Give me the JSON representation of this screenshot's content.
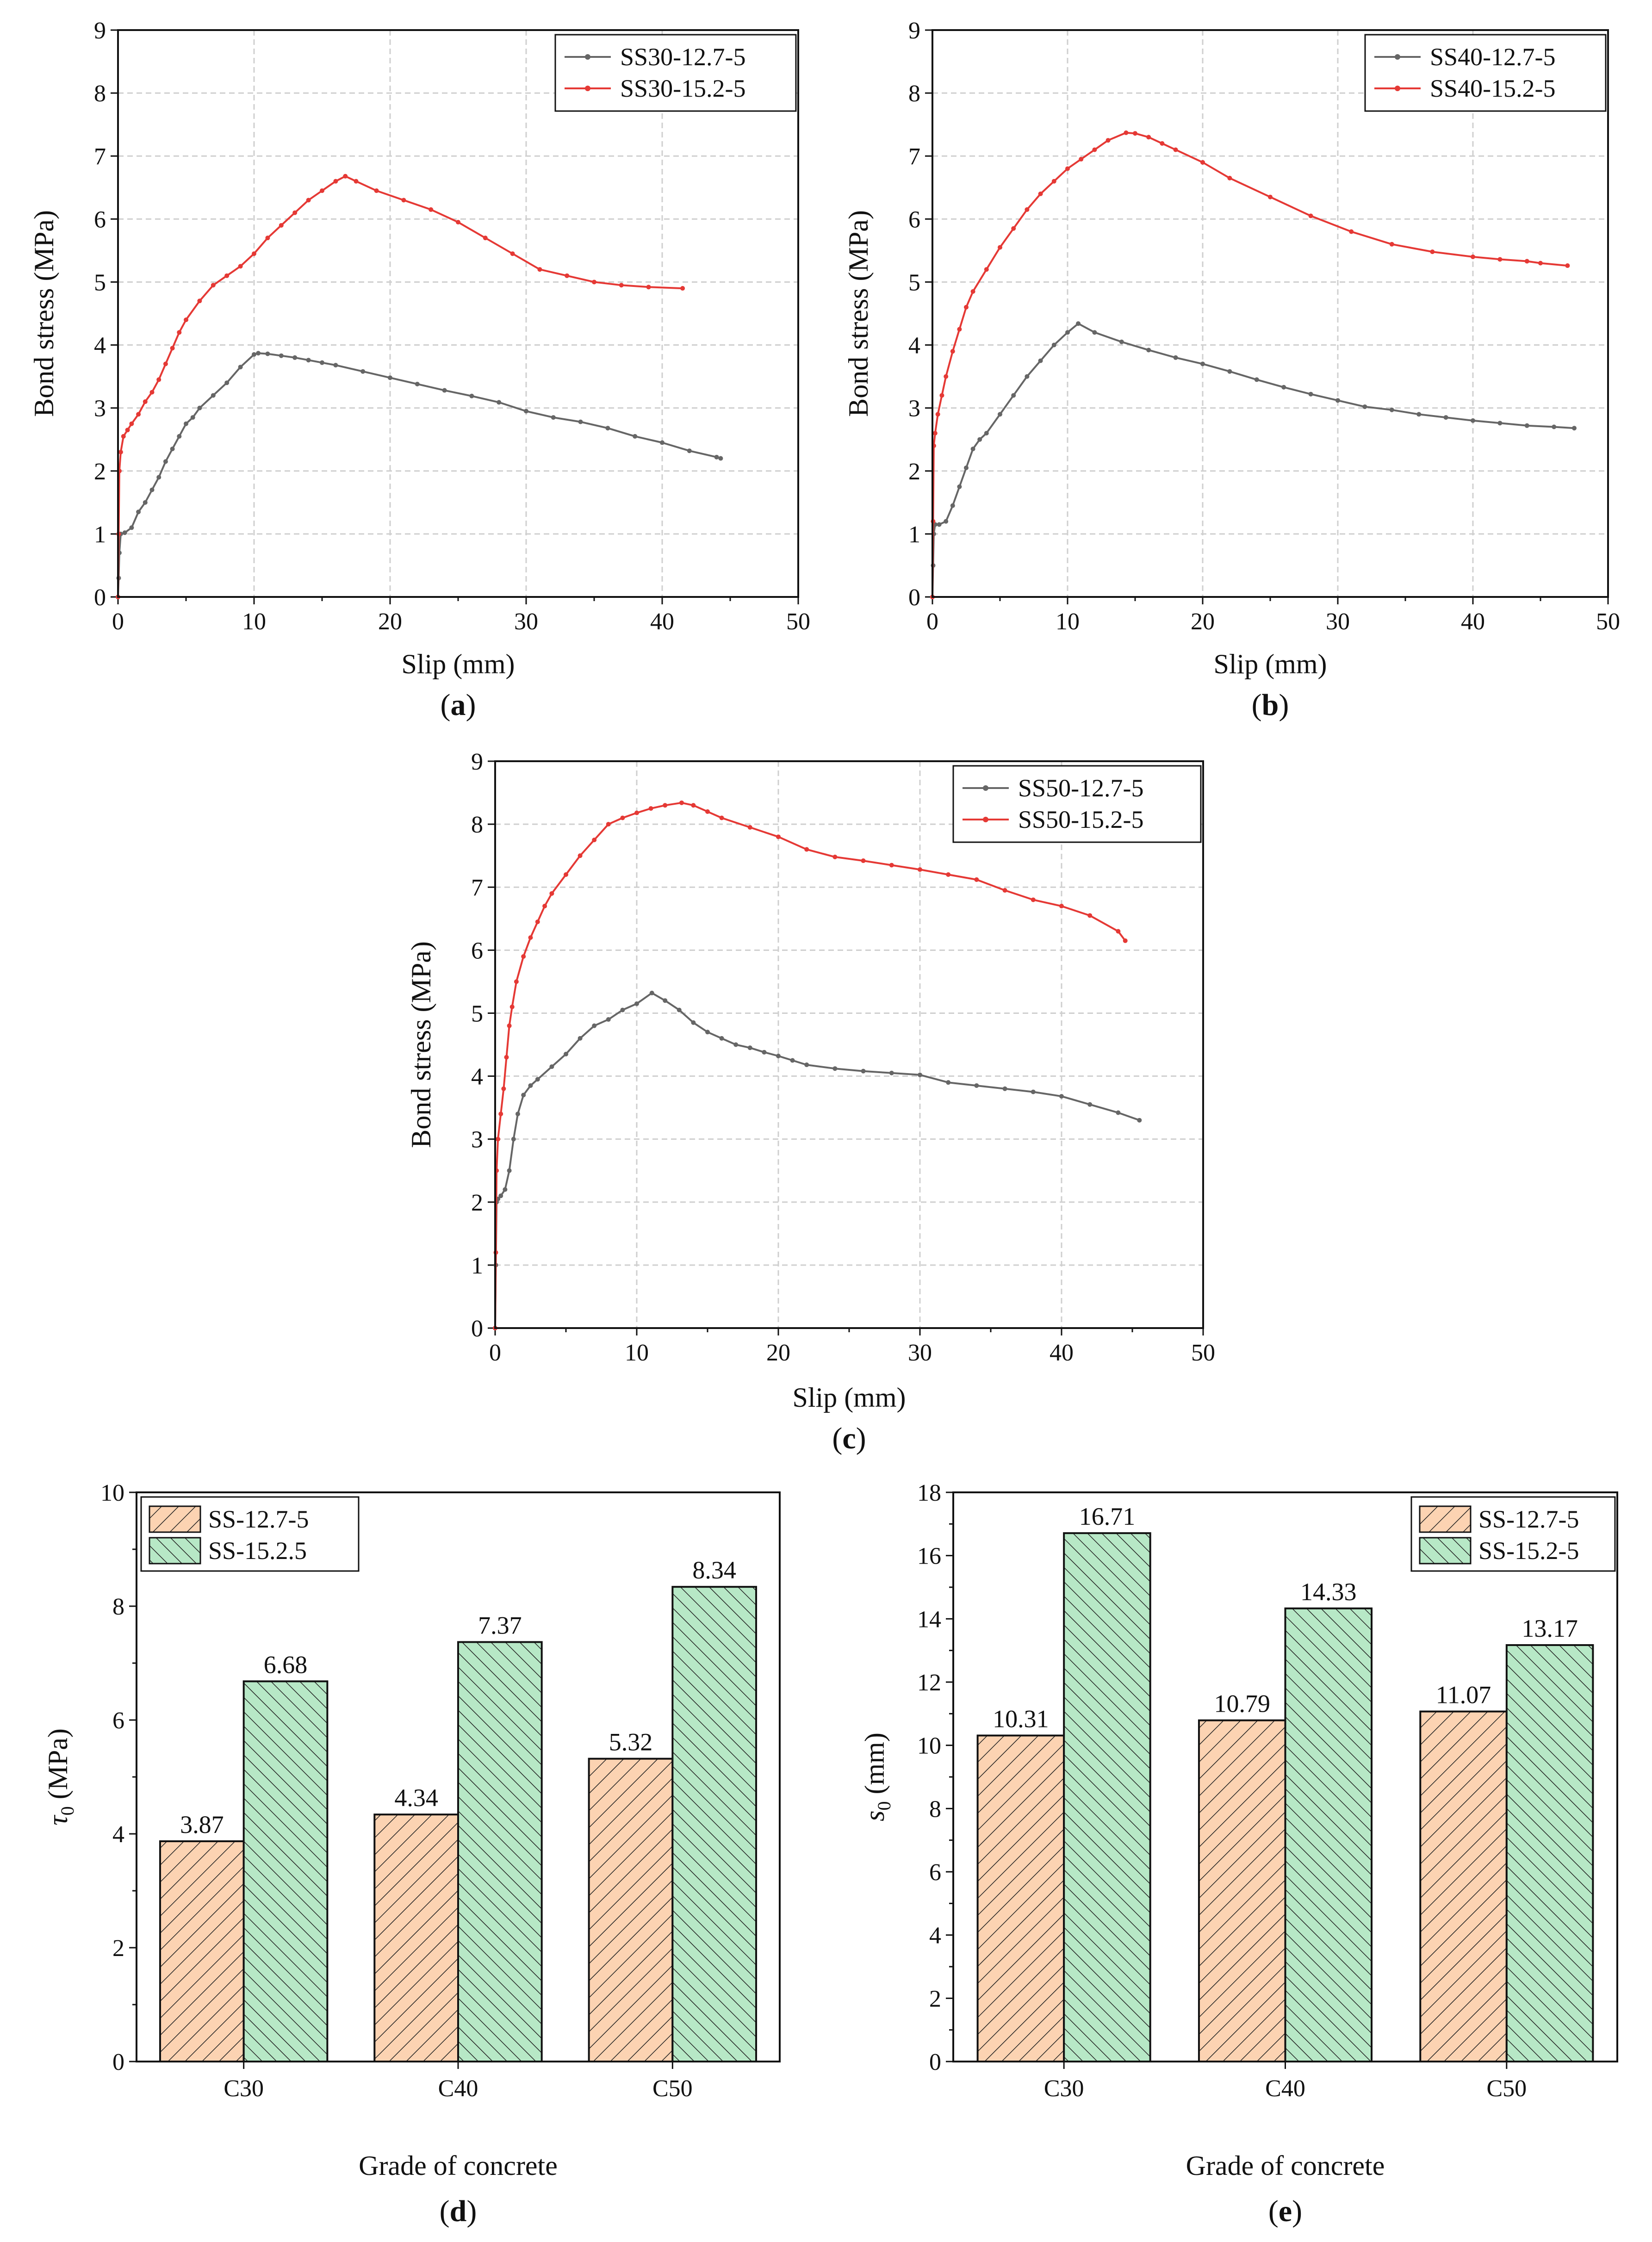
{
  "chart_data": [
    {
      "panel_label": "a",
      "type": "line",
      "xlabel": "Slip (mm)",
      "ylabel": "Bond stress (MPa)",
      "xlim": [
        0,
        50
      ],
      "ylim": [
        0,
        9
      ],
      "xticks": [
        0,
        10,
        20,
        30,
        40,
        50
      ],
      "yticks": [
        0,
        1,
        2,
        3,
        4,
        5,
        6,
        7,
        8,
        9
      ],
      "grid": true,
      "legend": "top-right",
      "series": [
        {
          "name": "SS30-12.7-5",
          "color": "#666666",
          "x": [
            0,
            0.05,
            0.1,
            0.2,
            0.5,
            1,
            1.5,
            2,
            2.5,
            3,
            3.5,
            4,
            4.5,
            5,
            5.5,
            6,
            7,
            8,
            9,
            10,
            10.31,
            11,
            12,
            13,
            14,
            15,
            16,
            18,
            20,
            22,
            24,
            26,
            28,
            30,
            32,
            34,
            36,
            38,
            40,
            42,
            44,
            44.3
          ],
          "y": [
            0,
            0.3,
            0.7,
            1.0,
            1.02,
            1.1,
            1.35,
            1.5,
            1.7,
            1.9,
            2.15,
            2.35,
            2.55,
            2.75,
            2.85,
            3.0,
            3.2,
            3.4,
            3.65,
            3.85,
            3.87,
            3.86,
            3.83,
            3.8,
            3.76,
            3.72,
            3.68,
            3.58,
            3.48,
            3.38,
            3.28,
            3.19,
            3.09,
            2.95,
            2.85,
            2.78,
            2.68,
            2.55,
            2.45,
            2.32,
            2.22,
            2.2
          ]
        },
        {
          "name": "SS30-15.2-5",
          "color": "#e53935",
          "x": [
            0,
            0.05,
            0.1,
            0.2,
            0.4,
            0.7,
            1,
            1.5,
            2,
            2.5,
            3,
            3.5,
            4,
            4.5,
            5,
            6,
            7,
            8,
            9,
            10,
            11,
            12,
            13,
            14,
            15,
            16,
            16.71,
            17.5,
            19,
            21,
            23,
            25,
            27,
            29,
            31,
            33,
            35,
            37,
            39,
            41.5
          ],
          "y": [
            0,
            1.0,
            2.0,
            2.3,
            2.55,
            2.65,
            2.75,
            2.9,
            3.1,
            3.25,
            3.45,
            3.7,
            3.95,
            4.2,
            4.4,
            4.7,
            4.95,
            5.1,
            5.25,
            5.45,
            5.7,
            5.9,
            6.1,
            6.3,
            6.45,
            6.6,
            6.68,
            6.6,
            6.45,
            6.3,
            6.15,
            5.95,
            5.7,
            5.45,
            5.2,
            5.1,
            5.0,
            4.95,
            4.92,
            4.9
          ]
        }
      ]
    },
    {
      "panel_label": "b",
      "type": "line",
      "xlabel": "Slip (mm)",
      "ylabel": "Bond stress (MPa)",
      "xlim": [
        0,
        50
      ],
      "ylim": [
        0,
        9
      ],
      "xticks": [
        0,
        10,
        20,
        30,
        40,
        50
      ],
      "yticks": [
        0,
        1,
        2,
        3,
        4,
        5,
        6,
        7,
        8,
        9
      ],
      "grid": true,
      "legend": "top-right",
      "series": [
        {
          "name": "SS40-12.7-5",
          "color": "#666666",
          "x": [
            0,
            0.05,
            0.1,
            0.2,
            0.5,
            1,
            1.5,
            2,
            2.5,
            3,
            3.5,
            4,
            5,
            6,
            7,
            8,
            9,
            10,
            10.79,
            12,
            14,
            16,
            18,
            20,
            22,
            24,
            26,
            28,
            30,
            32,
            34,
            36,
            38,
            40,
            42,
            44,
            46,
            47.5
          ],
          "y": [
            0,
            0.5,
            1.0,
            1.15,
            1.15,
            1.2,
            1.45,
            1.75,
            2.05,
            2.35,
            2.5,
            2.6,
            2.9,
            3.2,
            3.5,
            3.75,
            4.0,
            4.2,
            4.34,
            4.2,
            4.05,
            3.92,
            3.8,
            3.7,
            3.58,
            3.45,
            3.33,
            3.22,
            3.12,
            3.02,
            2.97,
            2.9,
            2.85,
            2.8,
            2.76,
            2.72,
            2.7,
            2.68
          ]
        },
        {
          "name": "SS40-15.2-5",
          "color": "#e53935",
          "x": [
            0,
            0.05,
            0.1,
            0.2,
            0.4,
            0.7,
            1,
            1.5,
            2,
            2.5,
            3,
            4,
            5,
            6,
            7,
            8,
            9,
            10,
            11,
            12,
            13,
            14.33,
            15,
            16,
            17,
            18,
            20,
            22,
            25,
            28,
            31,
            34,
            37,
            40,
            42,
            44,
            45,
            47
          ],
          "y": [
            0,
            1.2,
            2.4,
            2.6,
            2.9,
            3.2,
            3.5,
            3.9,
            4.25,
            4.6,
            4.85,
            5.2,
            5.55,
            5.85,
            6.15,
            6.4,
            6.6,
            6.8,
            6.95,
            7.1,
            7.25,
            7.37,
            7.36,
            7.3,
            7.2,
            7.1,
            6.9,
            6.65,
            6.35,
            6.05,
            5.8,
            5.6,
            5.48,
            5.4,
            5.36,
            5.33,
            5.3,
            5.26
          ]
        }
      ]
    },
    {
      "panel_label": "c",
      "type": "line",
      "xlabel": "Slip (mm)",
      "ylabel": "Bond stress (MPa)",
      "xlim": [
        0,
        50
      ],
      "ylim": [
        0,
        9
      ],
      "xticks": [
        0,
        10,
        20,
        30,
        40,
        50
      ],
      "yticks": [
        0,
        1,
        2,
        3,
        4,
        5,
        6,
        7,
        8,
        9
      ],
      "grid": true,
      "legend": "top-right",
      "series": [
        {
          "name": "SS50-12.7-5",
          "color": "#666666",
          "x": [
            0,
            0.05,
            0.1,
            0.2,
            0.4,
            0.7,
            1,
            1.3,
            1.6,
            2,
            2.5,
            3,
            4,
            5,
            6,
            7,
            8,
            9,
            10,
            11.07,
            12,
            13,
            14,
            15,
            16,
            17,
            18,
            19,
            20,
            21,
            22,
            24,
            26,
            28,
            30,
            32,
            34,
            36,
            38,
            40,
            42,
            44,
            45.5
          ],
          "y": [
            0,
            1.0,
            2.0,
            2.05,
            2.1,
            2.2,
            2.5,
            3.0,
            3.4,
            3.7,
            3.85,
            3.95,
            4.15,
            4.35,
            4.6,
            4.8,
            4.9,
            5.05,
            5.15,
            5.32,
            5.2,
            5.05,
            4.85,
            4.7,
            4.6,
            4.5,
            4.45,
            4.38,
            4.32,
            4.25,
            4.18,
            4.12,
            4.08,
            4.05,
            4.02,
            3.9,
            3.85,
            3.8,
            3.75,
            3.68,
            3.55,
            3.42,
            3.3
          ]
        },
        {
          "name": "SS50-15.2-5",
          "color": "#e53935",
          "x": [
            0,
            0.05,
            0.1,
            0.2,
            0.4,
            0.6,
            0.8,
            1.0,
            1.2,
            1.5,
            2,
            2.5,
            3,
            3.5,
            4,
            5,
            6,
            7,
            8,
            9,
            10,
            11,
            12,
            13.17,
            14,
            15,
            16,
            18,
            20,
            22,
            24,
            26,
            28,
            30,
            32,
            34,
            36,
            38,
            40,
            42,
            44,
            44.5
          ],
          "y": [
            0,
            1.2,
            2.5,
            3.0,
            3.4,
            3.8,
            4.3,
            4.8,
            5.1,
            5.5,
            5.9,
            6.2,
            6.45,
            6.7,
            6.9,
            7.2,
            7.5,
            7.75,
            8.0,
            8.1,
            8.18,
            8.25,
            8.3,
            8.34,
            8.3,
            8.2,
            8.1,
            7.95,
            7.8,
            7.6,
            7.48,
            7.42,
            7.35,
            7.28,
            7.2,
            7.12,
            6.95,
            6.8,
            6.7,
            6.55,
            6.3,
            6.15
          ]
        }
      ]
    },
    {
      "panel_label": "d",
      "type": "bar",
      "xlabel": "Grade of concrete",
      "ylabel": "τ0 (MPa)",
      "ylabel_main": "τ",
      "ylabel_sub": "0",
      "ylabel_unit": " (MPa)",
      "categories": [
        "C30",
        "C40",
        "C50"
      ],
      "ylim": [
        0,
        10
      ],
      "yticks": [
        0,
        2,
        4,
        6,
        8,
        10
      ],
      "legend": "top-left",
      "series": [
        {
          "name": "SS-12.7-5",
          "color": "#fcd3b2",
          "values": [
            3.87,
            4.34,
            5.32
          ],
          "labels": [
            "3.87",
            "4.34",
            "5.32"
          ]
        },
        {
          "name": "SS-15.2.5",
          "color": "#b7e8c6",
          "values": [
            6.68,
            7.37,
            8.34
          ],
          "labels": [
            "6.68",
            "7.37",
            "8.34"
          ]
        }
      ]
    },
    {
      "panel_label": "e",
      "type": "bar",
      "xlabel": "Grade of concrete",
      "ylabel": "s0 (mm)",
      "ylabel_main": "s",
      "ylabel_sub": "0",
      "ylabel_unit": " (mm)",
      "categories": [
        "C30",
        "C40",
        "C50"
      ],
      "ylim": [
        0,
        18
      ],
      "yticks": [
        0,
        2,
        4,
        6,
        8,
        10,
        12,
        14,
        16,
        18
      ],
      "legend": "top-right",
      "series": [
        {
          "name": "SS-12.7-5",
          "color": "#fcd3b2",
          "values": [
            10.31,
            10.79,
            11.07
          ],
          "labels": [
            "10.31",
            "10.79",
            "11.07"
          ]
        },
        {
          "name": "SS-15.2-5",
          "color": "#b7e8c6",
          "values": [
            16.71,
            14.33,
            13.17
          ],
          "labels": [
            "16.71",
            "14.33",
            "13.17"
          ]
        }
      ]
    }
  ]
}
